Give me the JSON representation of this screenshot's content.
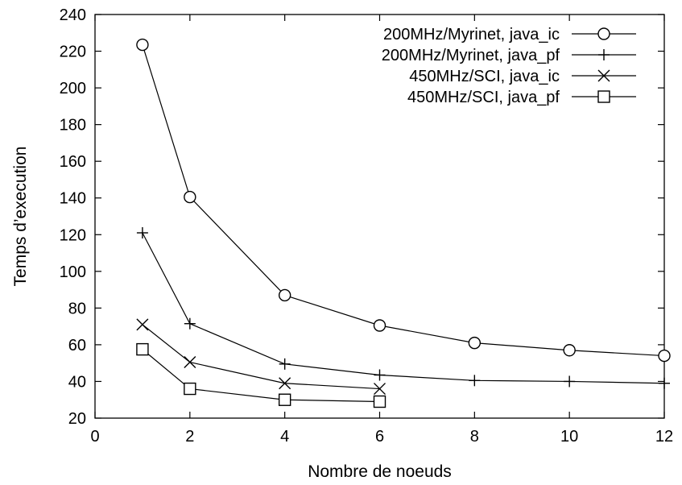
{
  "chart_data": {
    "type": "line",
    "xlabel": "Nombre de noeuds",
    "ylabel": "Temps d’execution",
    "xlim": [
      0,
      12
    ],
    "ylim": [
      20,
      240
    ],
    "xticks": [
      0,
      2,
      4,
      6,
      8,
      10,
      12
    ],
    "yticks": [
      20,
      40,
      60,
      80,
      100,
      120,
      140,
      160,
      180,
      200,
      220,
      240
    ],
    "grid": false,
    "legend_position": "top-right",
    "series": [
      {
        "name": "200MHz/Myrinet, java_ic",
        "marker": "circle",
        "x": [
          1,
          2,
          4,
          6,
          8,
          10,
          12
        ],
        "y": [
          223.5,
          140.5,
          87,
          70.5,
          61,
          57,
          54
        ]
      },
      {
        "name": "200MHz/Myrinet, java_pf",
        "marker": "plus",
        "x": [
          1,
          2,
          4,
          6,
          8,
          10,
          12
        ],
        "y": [
          121,
          71.5,
          49.5,
          43.5,
          40.5,
          40,
          39
        ]
      },
      {
        "name": "450MHz/SCI, java_ic",
        "marker": "cross",
        "x": [
          1,
          2,
          4,
          6
        ],
        "y": [
          71,
          50.5,
          39,
          36
        ]
      },
      {
        "name": "450MHz/SCI, java_pf",
        "marker": "square",
        "x": [
          1,
          2,
          4,
          6
        ],
        "y": [
          57.5,
          36,
          30,
          29
        ]
      }
    ]
  }
}
